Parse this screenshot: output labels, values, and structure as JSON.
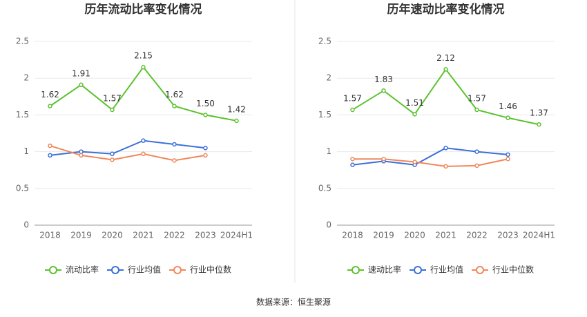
{
  "chart_data": [
    {
      "type": "line",
      "title": "历年流动比率变化情况",
      "categories": [
        "2018",
        "2019",
        "2020",
        "2021",
        "2022",
        "2023",
        "2024H1"
      ],
      "ylim": [
        0,
        2.5
      ],
      "yticks": [
        0,
        0.5,
        1,
        1.5,
        2,
        2.5
      ],
      "grid": true,
      "legend": "bottom",
      "series": [
        {
          "name": "流动比率",
          "color": "#5bc22d",
          "values": [
            1.62,
            1.91,
            1.57,
            2.15,
            1.62,
            1.5,
            1.42
          ],
          "value_labels": [
            "1.62",
            "1.91",
            "1.57",
            "2.15",
            "1.62",
            "1.50",
            "1.42"
          ]
        },
        {
          "name": "行业均值",
          "color": "#3b6fd8",
          "values": [
            0.95,
            1.0,
            0.97,
            1.15,
            1.1,
            1.05,
            null
          ]
        },
        {
          "name": "行业中位数",
          "color": "#f0875a",
          "values": [
            1.08,
            0.95,
            0.89,
            0.97,
            0.88,
            0.95,
            null
          ]
        }
      ]
    },
    {
      "type": "line",
      "title": "历年速动比率变化情况",
      "categories": [
        "2018",
        "2019",
        "2020",
        "2021",
        "2022",
        "2023",
        "2024H1"
      ],
      "ylim": [
        0,
        2.5
      ],
      "yticks": [
        0,
        0.5,
        1,
        1.5,
        2,
        2.5
      ],
      "grid": true,
      "legend": "bottom",
      "series": [
        {
          "name": "速动比率",
          "color": "#5bc22d",
          "values": [
            1.57,
            1.83,
            1.51,
            2.12,
            1.57,
            1.46,
            1.37
          ],
          "value_labels": [
            "1.57",
            "1.83",
            "1.51",
            "2.12",
            "1.57",
            "1.46",
            "1.37"
          ]
        },
        {
          "name": "行业均值",
          "color": "#3b6fd8",
          "values": [
            0.82,
            0.87,
            0.82,
            1.05,
            1.0,
            0.96,
            null
          ]
        },
        {
          "name": "行业中位数",
          "color": "#f0875a",
          "values": [
            0.9,
            0.9,
            0.86,
            0.8,
            0.81,
            0.9,
            null
          ]
        }
      ]
    }
  ],
  "source": "数据来源：恒生聚源"
}
